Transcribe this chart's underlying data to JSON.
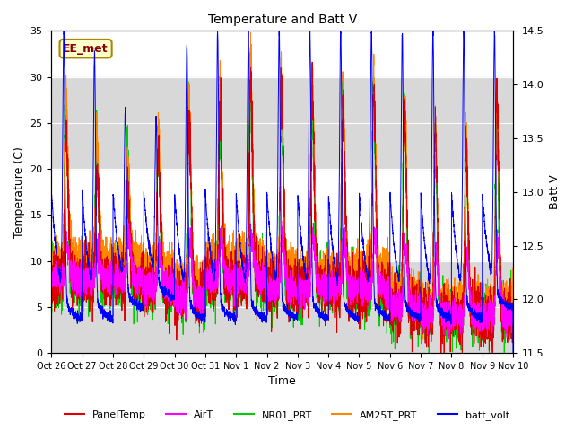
{
  "title": "Temperature and Batt V",
  "xlabel": "Time",
  "ylabel_left": "Temperature (C)",
  "ylabel_right": "Batt V",
  "annotation": "EE_met",
  "ylim_left": [
    0,
    35
  ],
  "ylim_right": [
    11.5,
    14.5
  ],
  "x_tick_labels": [
    "Oct 26",
    "Oct 27",
    "Oct 28",
    "Oct 29",
    "Oct 30",
    "Oct 31",
    "Nov 1",
    "Nov 2",
    "Nov 3",
    "Nov 4",
    "Nov 5",
    "Nov 6",
    "Nov 7",
    "Nov 8",
    "Nov 9",
    "Nov 10"
  ],
  "series_colors": {
    "PanelTemp": "#dd0000",
    "AirT": "#ff00ff",
    "NR01_PRT": "#00cc00",
    "AM25T_PRT": "#ff8800",
    "batt_volt": "#0000ff"
  },
  "legend_entries": [
    "PanelTemp",
    "AirT",
    "NR01_PRT",
    "AM25T_PRT",
    "batt_volt"
  ],
  "bg_band_color": "#d8d8d8",
  "bg_band_ylim": [
    20,
    30
  ],
  "bg_band2_ylim": [
    0,
    10
  ]
}
